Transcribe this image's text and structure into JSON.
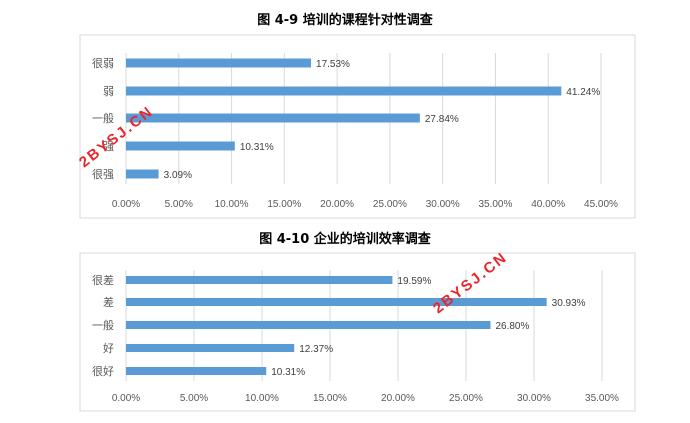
{
  "chart_data": [
    {
      "type": "bar",
      "orientation": "horizontal",
      "title": "图 4-9  培训的课程针对性调查",
      "categories": [
        "很弱",
        "弱",
        "一般",
        "强",
        "很强"
      ],
      "values": [
        17.53,
        41.24,
        27.84,
        10.31,
        3.09
      ],
      "data_labels": [
        "17.53%",
        "41.24%",
        "27.84%",
        "10.31%",
        "3.09%"
      ],
      "xlim": [
        0,
        45
      ],
      "ticks": [
        "0.00%",
        "5.00%",
        "10.00%",
        "15.00%",
        "20.00%",
        "25.00%",
        "30.00%",
        "35.00%",
        "40.00%",
        "45.00%"
      ],
      "grid": true,
      "color": "#5b9bd5"
    },
    {
      "type": "bar",
      "orientation": "horizontal",
      "title": "图 4-10  企业的培训效率调查",
      "categories": [
        "很差",
        "差",
        "一般",
        "好",
        "很好"
      ],
      "values": [
        19.59,
        30.93,
        26.8,
        12.37,
        10.31
      ],
      "data_labels": [
        "19.59%",
        "30.93%",
        "26.80%",
        "12.37%",
        "10.31%"
      ],
      "xlim": [
        0,
        35
      ],
      "ticks": [
        "0.00%",
        "5.00%",
        "10.00%",
        "15.00%",
        "20.00%",
        "25.00%",
        "30.00%",
        "35.00%"
      ],
      "grid": true,
      "color": "#5b9bd5"
    }
  ],
  "watermark": "2BYSJ.CN"
}
